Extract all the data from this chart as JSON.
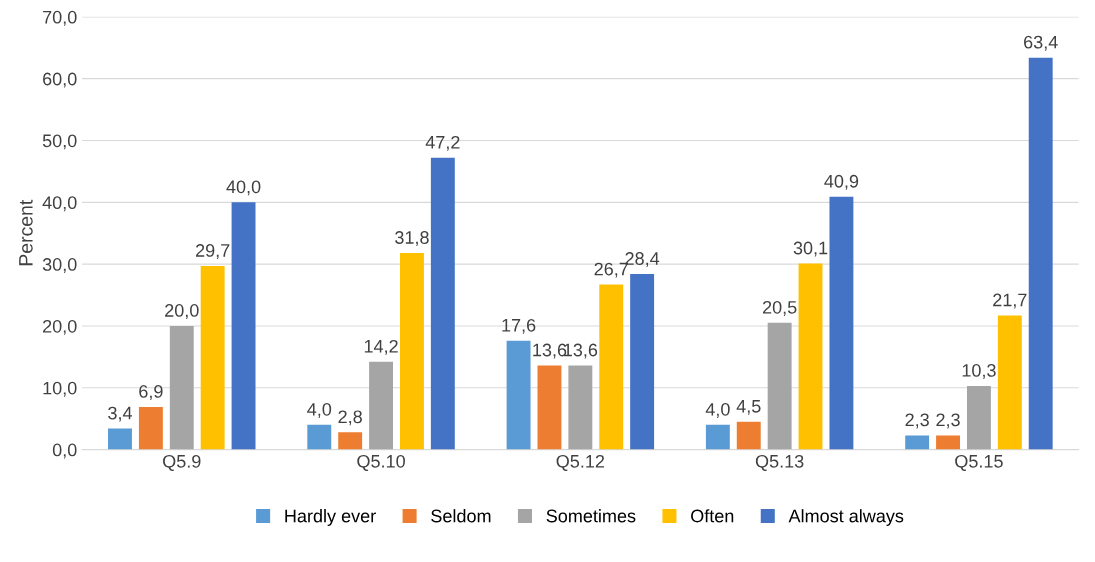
{
  "chart_data": {
    "type": "bar",
    "ylabel": "Percent",
    "categories": [
      "Q5.9",
      "Q5.10",
      "Q5.12",
      "Q5.13",
      "Q5.15"
    ],
    "series": [
      {
        "name": "Hardly ever",
        "color": "#5b9bd5",
        "values": [
          3.4,
          4.0,
          17.6,
          4.0,
          2.3
        ],
        "value_labels": [
          "3,4",
          "4,0",
          "17,6",
          "4,0",
          "2,3"
        ]
      },
      {
        "name": "Seldom",
        "color": "#ed7d31",
        "values": [
          6.9,
          2.8,
          13.6,
          4.5,
          2.3
        ],
        "value_labels": [
          "6,9",
          "2,8",
          "13,6",
          "4,5",
          "2,3"
        ]
      },
      {
        "name": "Sometimes",
        "color": "#a5a5a5",
        "values": [
          20.0,
          14.2,
          13.6,
          20.5,
          10.3
        ],
        "value_labels": [
          "20,0",
          "14,2",
          "13,6",
          "20,5",
          "10,3"
        ]
      },
      {
        "name": "Often",
        "color": "#ffc000",
        "values": [
          29.7,
          31.8,
          26.7,
          30.1,
          21.7
        ],
        "value_labels": [
          "29,7",
          "31,8",
          "26,7",
          "30,1",
          "21,7"
        ]
      },
      {
        "name": "Almost always",
        "color": "#4472c4",
        "values": [
          40.0,
          47.2,
          28.4,
          40.9,
          63.4
        ],
        "value_labels": [
          "40,0",
          "47,2",
          "28,4",
          "40,9",
          "63,4"
        ]
      }
    ],
    "ylim": [
      0,
      70
    ],
    "yticks": [
      {
        "value": 0,
        "label": "0,0"
      },
      {
        "value": 10,
        "label": "10,0"
      },
      {
        "value": 20,
        "label": "20,0"
      },
      {
        "value": 30,
        "label": "30,0"
      },
      {
        "value": 40,
        "label": "40,0"
      },
      {
        "value": 50,
        "label": "50,0"
      },
      {
        "value": 60,
        "label": "60,0"
      },
      {
        "value": 70,
        "label": "70,0"
      }
    ],
    "grid": "y",
    "legend": "bottom"
  }
}
